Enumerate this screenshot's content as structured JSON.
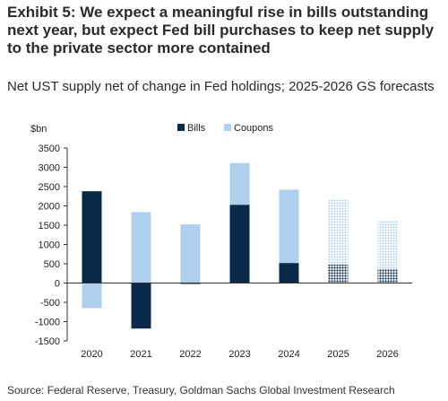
{
  "title": "Exhibit 5: We expect a meaningful rise in bills outstanding next year, but expect Fed bill purchases to keep net supply to the private sector more contained",
  "subtitle": "Net UST supply net of change in Fed holdings; 2025-2026 GS forecasts",
  "source": "Source: Federal Reserve, Treasury, Goldman Sachs Global Investment Research",
  "chart_data": {
    "type": "bar",
    "stacked": true,
    "ylabel": "$bn",
    "ylim": [
      -1500,
      3500
    ],
    "yticks": [
      3500,
      3000,
      2500,
      2000,
      1500,
      1000,
      500,
      0,
      -500,
      -1000,
      -1500
    ],
    "categories": [
      "2020",
      "2021",
      "2022",
      "2023",
      "2024",
      "2025",
      "2026"
    ],
    "forecast_categories": [
      "2025",
      "2026"
    ],
    "legend_position": "top-center",
    "grid": false,
    "series": [
      {
        "name": "Bills",
        "color": "#0b2a4a",
        "values": [
          2380,
          -1180,
          -20,
          2030,
          520,
          480,
          360
        ]
      },
      {
        "name": "Coupons",
        "color": "#aecfee",
        "values": [
          -650,
          1840,
          1520,
          1080,
          1900,
          1680,
          1260
        ]
      }
    ]
  }
}
